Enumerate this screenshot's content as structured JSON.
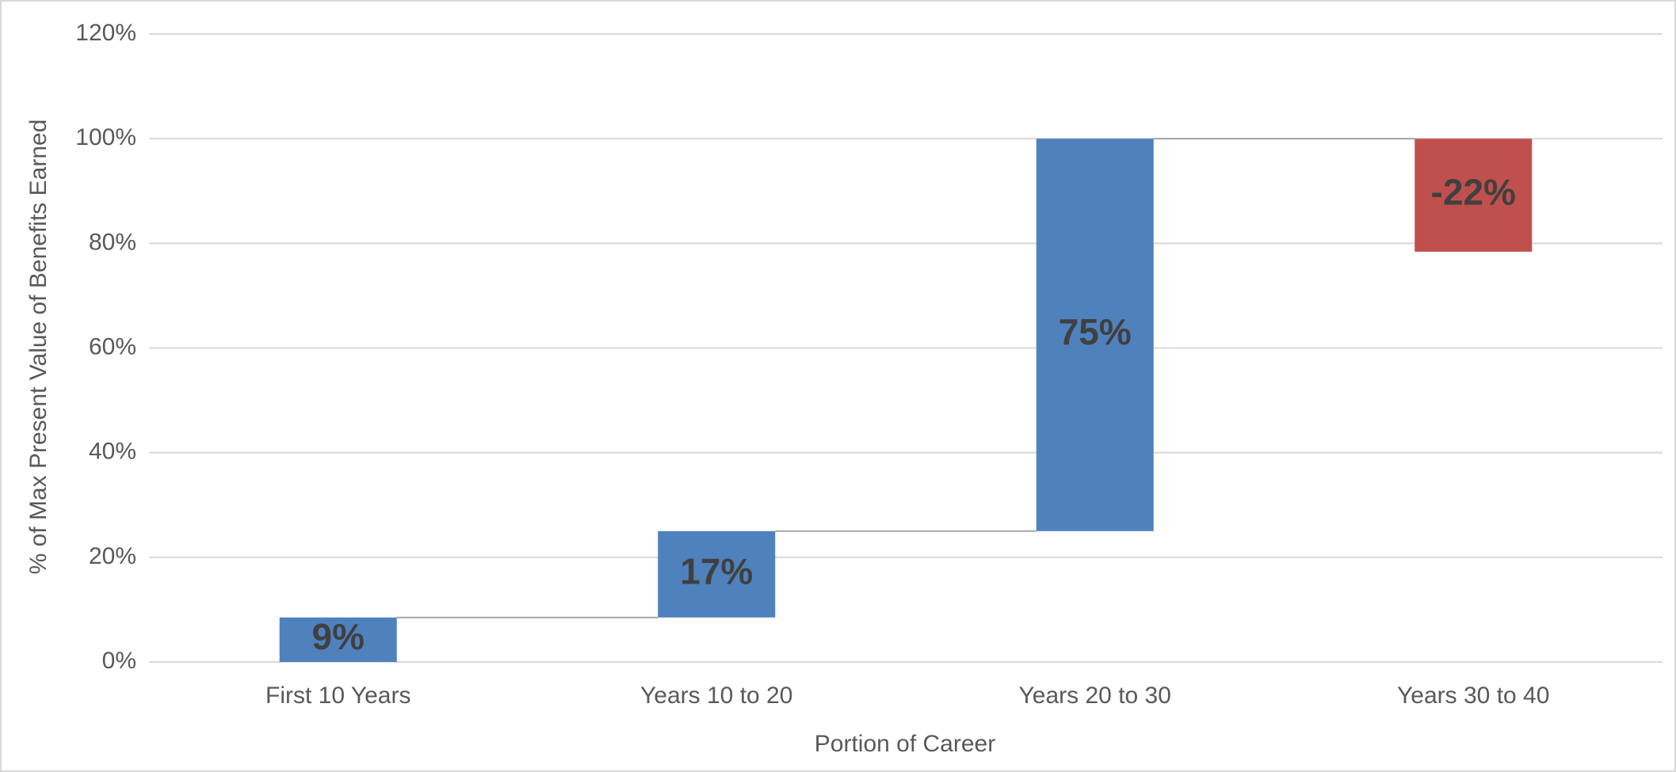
{
  "chart_data": {
    "type": "waterfall",
    "categories": [
      "First 10 Years",
      "Years 10 to 20",
      "Years 20 to 30",
      "Years 30 to 40"
    ],
    "values": [
      8.5,
      16.5,
      75,
      -21.6
    ],
    "value_labels": [
      "9%",
      "17%",
      "75%",
      "-22%"
    ],
    "colors": {
      "increase": "#4f81bd",
      "decrease": "#c0504d"
    },
    "x_label": "Portion of Career",
    "y_label": "% of Max Present Value of Benefits Earned",
    "ylim": [
      0,
      120
    ],
    "yticks": [
      {
        "value": 0,
        "label": "0%"
      },
      {
        "value": 20,
        "label": "20%"
      },
      {
        "value": 40,
        "label": "40%"
      },
      {
        "value": 60,
        "label": "60%"
      },
      {
        "value": 80,
        "label": "80%"
      },
      {
        "value": 100,
        "label": "100%"
      },
      {
        "value": 120,
        "label": "120%"
      }
    ],
    "grid": true
  }
}
